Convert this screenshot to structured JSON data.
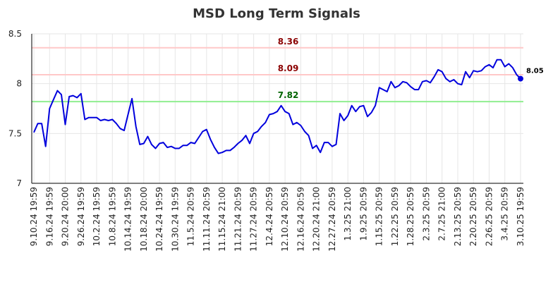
{
  "chart_data": {
    "type": "line",
    "title": "MSD Long Term Signals",
    "xlabel": "",
    "ylabel": "",
    "ylim": [
      7,
      8.5
    ],
    "yticks": [
      7,
      7.5,
      8,
      8.5
    ],
    "ytick_labels": [
      "7",
      "7.5",
      "8",
      "8.5"
    ],
    "grid": true,
    "xtick_labels": [
      "9.10.24 19:59",
      "9.16.24 19:59",
      "9.20.24 20:00",
      "9.26.24 19:59",
      "10.2.24 19:59",
      "10.8.24 19:59",
      "10.14.24 19:59",
      "10.18.24 20:00",
      "10.24.24 19:59",
      "10.30.24 19:59",
      "11.5.24 20:59",
      "11.11.24 20:59",
      "11.15.24 21:00",
      "11.21.24 20:59",
      "11.27.24 20:59",
      "12.4.24 20:59",
      "12.10.24 20:59",
      "12.16.24 20:59",
      "12.20.24 21:00",
      "12.27.24 20:59",
      "1.3.25 21:00",
      "1.9.25 20:59",
      "1.15.25 20:59",
      "1.22.25 20:59",
      "1.28.25 20:59",
      "2.3.25 20:59",
      "2.7.25 21:00",
      "2.13.25 20:59",
      "2.20.25 20:59",
      "2.26.25 20:59",
      "3.4.25 20:59",
      "3.10.25 19:59"
    ],
    "xtick_index_step": 4,
    "series": [
      {
        "color": "#0000dd",
        "values": [
          7.51,
          7.6,
          7.6,
          7.37,
          7.75,
          7.84,
          7.93,
          7.89,
          7.59,
          7.87,
          7.88,
          7.86,
          7.9,
          7.64,
          7.66,
          7.66,
          7.66,
          7.63,
          7.64,
          7.63,
          7.64,
          7.6,
          7.55,
          7.53,
          7.69,
          7.85,
          7.57,
          7.39,
          7.4,
          7.47,
          7.39,
          7.35,
          7.4,
          7.41,
          7.36,
          7.37,
          7.35,
          7.35,
          7.38,
          7.38,
          7.41,
          7.4,
          7.46,
          7.52,
          7.54,
          7.44,
          7.36,
          7.3,
          7.31,
          7.33,
          7.33,
          7.36,
          7.4,
          7.43,
          7.48,
          7.4,
          7.5,
          7.52,
          7.57,
          7.61,
          7.69,
          7.7,
          7.72,
          7.78,
          7.72,
          7.7,
          7.59,
          7.61,
          7.58,
          7.52,
          7.48,
          7.35,
          7.38,
          7.31,
          7.41,
          7.41,
          7.37,
          7.39,
          7.7,
          7.63,
          7.68,
          7.78,
          7.72,
          7.77,
          7.78,
          7.67,
          7.71,
          7.78,
          7.96,
          7.94,
          7.92,
          8.02,
          7.96,
          7.98,
          8.02,
          8.01,
          7.97,
          7.94,
          7.94,
          8.02,
          8.03,
          8.01,
          8.07,
          8.14,
          8.12,
          8.05,
          8.02,
          8.04,
          8.0,
          7.99,
          8.12,
          8.06,
          8.13,
          8.12,
          8.13,
          8.17,
          8.19,
          8.16,
          8.24,
          8.24,
          8.17,
          8.2,
          8.16,
          8.09,
          8.05
        ]
      }
    ],
    "reference_lines": [
      {
        "value": 8.36,
        "label": "8.36",
        "line_color": "#ffc8c8",
        "label_color": "#8b0000"
      },
      {
        "value": 8.09,
        "label": "8.09",
        "line_color": "#ffc8c8",
        "label_color": "#8b0000"
      },
      {
        "value": 7.82,
        "label": "7.82",
        "line_color": "#90ee90",
        "label_color": "#006400"
      }
    ],
    "last_point": {
      "value": 8.05,
      "label": "8.05",
      "color": "#0000dd"
    }
  }
}
